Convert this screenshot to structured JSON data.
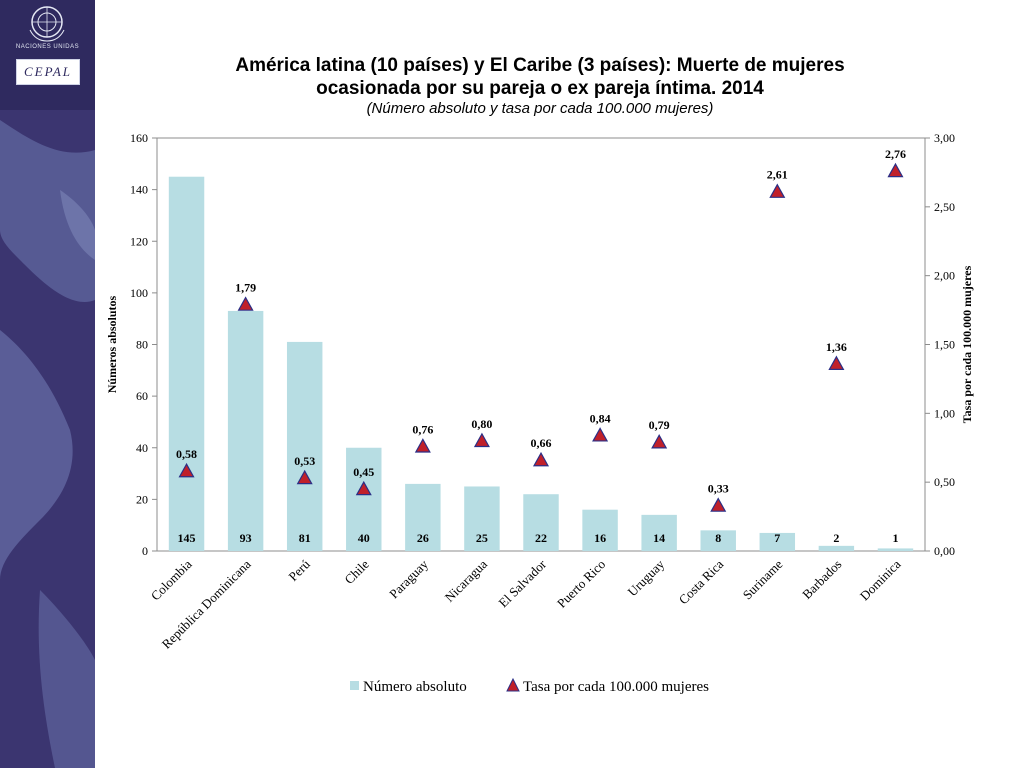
{
  "header": {
    "org_name": "NACIONES UNIDAS",
    "org_logo": "CEPAL"
  },
  "chart_data": {
    "type": "bar",
    "title": "América latina (10 países) y El Caribe (3 países): Muerte de mujeres ocasionada por su pareja o ex pareja íntima. 2014",
    "title_lines": [
      "América latina (10 países) y El Caribe (3 países): Muerte de mujeres",
      "ocasionada por su pareja o ex pareja íntima. 2014"
    ],
    "subtitle": "(Número absoluto y tasa por cada 100.000 mujeres)",
    "categories": [
      "Colombia",
      "República Dominicana",
      "Perú",
      "Chile",
      "Paraguay",
      "Nicaragua",
      "El Salvador",
      "Puerto Rico",
      "Uruguay",
      "Costa Rica",
      "Suriname",
      "Barbados",
      "Dominica"
    ],
    "series": [
      {
        "name": "Número absoluto",
        "type": "bar",
        "axis": "left",
        "color": "#b7dde3",
        "values": [
          145,
          93,
          81,
          40,
          26,
          25,
          22,
          16,
          14,
          8,
          7,
          2,
          1
        ],
        "labels": [
          "145",
          "93",
          "81",
          "40",
          "26",
          "25",
          "22",
          "16",
          "14",
          "8",
          "7",
          "2",
          "1"
        ]
      },
      {
        "name": "Tasa por cada 100.000 mujeres",
        "type": "scatter",
        "marker": "triangle",
        "axis": "right",
        "color": "#c0202a",
        "edge_color": "#2b2f86",
        "values": [
          0.58,
          1.79,
          0.53,
          0.45,
          0.76,
          0.8,
          0.66,
          0.84,
          0.79,
          0.33,
          2.61,
          1.36,
          2.76
        ],
        "labels": [
          "0,58",
          "1,79",
          "0,53",
          "0,45",
          "0,76",
          "0,80",
          "0,66",
          "0,84",
          "0,79",
          "0,33",
          "2,61",
          "1,36",
          "2,76"
        ]
      }
    ],
    "ylabel": "Números absolutos",
    "ylabel_right": "Tasa  por cada 100.000 mujeres",
    "ylim": [
      0,
      160
    ],
    "ylim_right": [
      0,
      3.0
    ],
    "yticks": [
      0,
      20,
      40,
      60,
      80,
      100,
      120,
      140,
      160
    ],
    "ytick_labels": [
      "0",
      "20",
      "40",
      "60",
      "80",
      "100",
      "120",
      "140",
      "160"
    ],
    "yticks_right": [
      0,
      0.5,
      1.0,
      1.5,
      2.0,
      2.5,
      3.0
    ],
    "ytick_labels_right": [
      "0,00",
      "0,50",
      "1,00",
      "1,50",
      "2,00",
      "2,50",
      "3,00"
    ],
    "grid": false,
    "legend_position": "bottom"
  }
}
